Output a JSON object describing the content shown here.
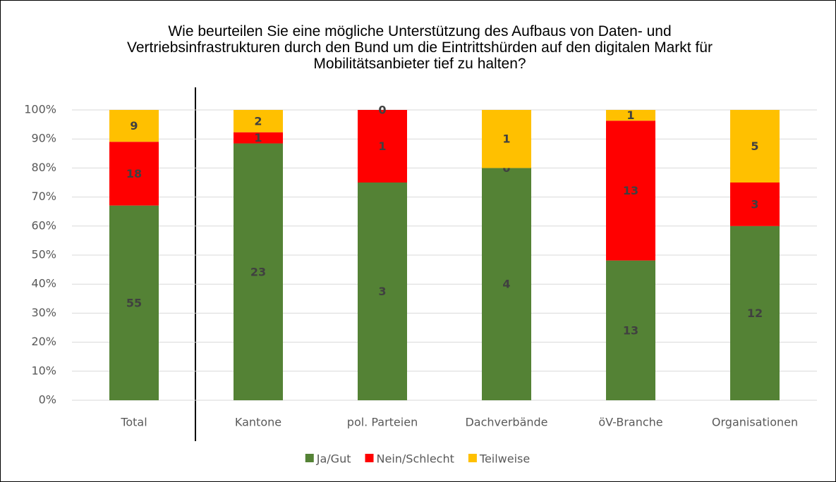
{
  "chart_data": {
    "type": "bar",
    "stacked_percent": true,
    "title": "Wie beurteilen Sie eine mögliche Unterstützung des Aufbaus von Daten- und Vertriebsinfrastrukturen durch den Bund um die Eintrittshürden auf den digitalen Markt für Mobilitätsanbieter tief zu halten?",
    "categories": [
      "Total",
      "Kantone",
      "pol. Parteien",
      "Dachverbände",
      "öV-Branche",
      "Organisationen"
    ],
    "series": [
      {
        "name": "Ja/Gut",
        "color": "#548235",
        "values": [
          55,
          23,
          3,
          4,
          13,
          12
        ]
      },
      {
        "name": "Nein/Schlecht",
        "color": "#ff0000",
        "values": [
          18,
          1,
          1,
          0,
          13,
          3
        ]
      },
      {
        "name": "Teilweise",
        "color": "#ffc000",
        "values": [
          9,
          2,
          0,
          1,
          1,
          5
        ]
      }
    ],
    "ylim": [
      0,
      100
    ],
    "yticks": [
      {
        "value": 0,
        "label": "0%"
      },
      {
        "value": 10,
        "label": "10%"
      },
      {
        "value": 20,
        "label": "20%"
      },
      {
        "value": 30,
        "label": "30%"
      },
      {
        "value": 40,
        "label": "40%"
      },
      {
        "value": 50,
        "label": "50%"
      },
      {
        "value": 60,
        "label": "60%"
      },
      {
        "value": 70,
        "label": "70%"
      },
      {
        "value": 80,
        "label": "80%"
      },
      {
        "value": 90,
        "label": "90%"
      },
      {
        "value": 100,
        "label": "100%"
      }
    ],
    "grid": true,
    "legend": "bottom"
  }
}
